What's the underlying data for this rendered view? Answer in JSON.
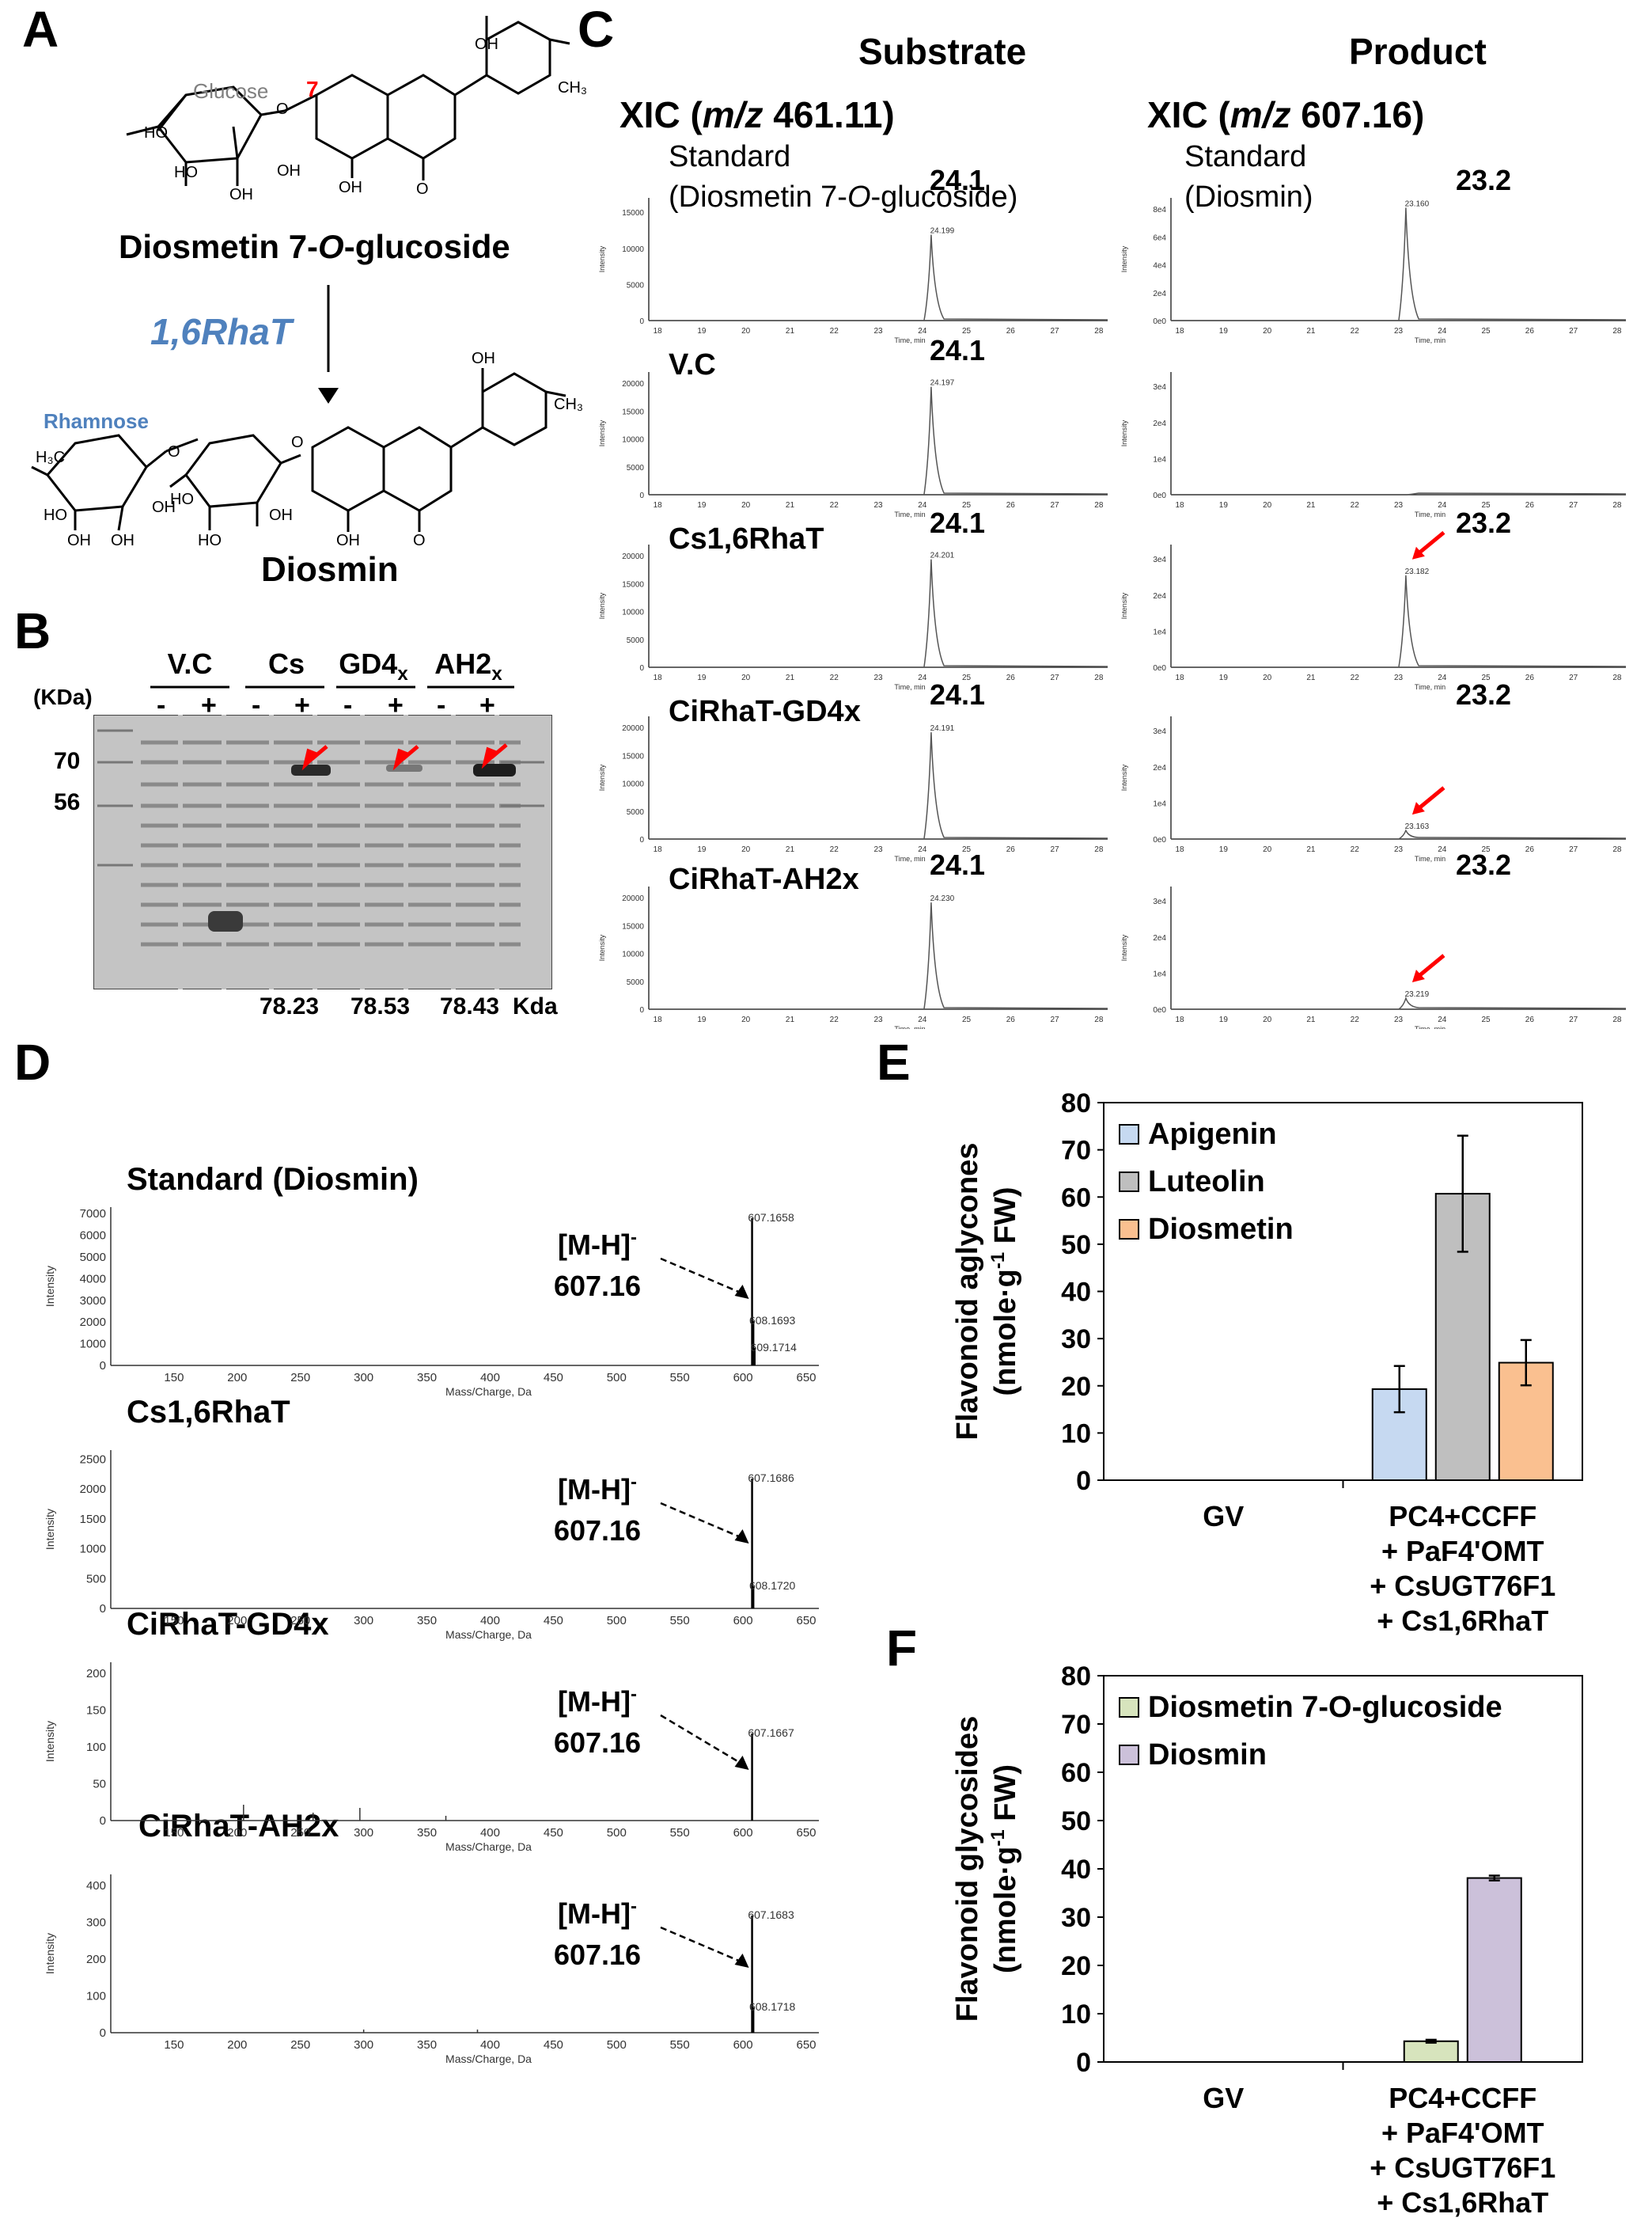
{
  "panels": {
    "A": "A",
    "B": "B",
    "C": "C",
    "D": "D",
    "E": "E",
    "F": "F"
  },
  "panelA": {
    "sugar_top": "Glucose",
    "position": "7",
    "substrate_name": "Diosmetin 7-",
    "substrate_o": "O",
    "substrate_suffix": "-glucoside",
    "enzyme": "1,6RhaT",
    "sugar_bottom": "Rhamnose",
    "product_name": "Diosmin",
    "atoms": {
      "ho": "HO",
      "oh": "OH",
      "o": "O",
      "h3c": "H₃C",
      "och3": "CH₃"
    }
  },
  "panelB": {
    "kda_label": "(KDa)",
    "markers": [
      "70",
      "56"
    ],
    "groups": [
      {
        "name": "V.C",
        "sub": ""
      },
      {
        "name": "Cs",
        "sub": ""
      },
      {
        "name": "GD4",
        "sub": "x"
      },
      {
        "name": "AH2",
        "sub": "x"
      }
    ],
    "minus": "-",
    "plus": "+",
    "sizes": [
      "78.23",
      "78.53",
      "78.43"
    ],
    "size_unit": "Kda"
  },
  "panelC": {
    "col_substrate": "Substrate",
    "col_product": "Product",
    "xic_prefix": "XIC (",
    "xic_mz": "m/z",
    "xic_sub_val": " 461.11)",
    "xic_prod_val": " 607.16)",
    "rows": [
      {
        "label": "Standard",
        "label2_pre": "(Diosmetin 7-",
        "label2_o": "O",
        "label2_post": "-glucoside)",
        "prod_label": "Standard",
        "prod_label2": "(Diosmin)",
        "sub_rt": "24.1",
        "sub_peak": "24.199",
        "prod_rt": "23.2",
        "prod_peak": "23.160"
      },
      {
        "label": "V.C",
        "sub_rt": "24.1",
        "sub_peak": "24.197",
        "prod_rt": "",
        "prod_peak": ""
      },
      {
        "label": "Cs1,6RhaT",
        "sub_rt": "24.1",
        "sub_peak": "24.201",
        "prod_rt": "23.2",
        "prod_peak": "23.182"
      },
      {
        "label": "CiRhaT-GD4x",
        "sub_rt": "24.1",
        "sub_peak": "24.191",
        "prod_rt": "23.2",
        "prod_peak": "23.163"
      },
      {
        "label": "CiRhaT-AH2x",
        "sub_rt": "24.1",
        "sub_peak": "24.230",
        "prod_rt": "23.2",
        "prod_peak": "23.219"
      }
    ],
    "x_ticks": [
      "18",
      "19",
      "20",
      "21",
      "22",
      "23",
      "24",
      "25",
      "26",
      "27",
      "28"
    ],
    "x_label": "Time, min",
    "y_label": "Intensity",
    "sub_yticks": [
      [
        "0",
        "5000",
        "10000",
        "15000"
      ],
      [
        "0",
        "5000",
        "10000",
        "15000",
        "20000"
      ],
      [
        "0",
        "5000",
        "10000",
        "15000",
        "20000"
      ],
      [
        "0",
        "5000",
        "10000",
        "15000",
        "20000"
      ],
      [
        "0",
        "5000",
        "10000",
        "15000",
        "20000"
      ]
    ],
    "prod_yticks": [
      [
        "0e0",
        "2e4",
        "4e4",
        "6e4",
        "8e4"
      ],
      [
        "0e0",
        "1e4",
        "2e4",
        "3e4"
      ],
      [
        "0e0",
        "1e4",
        "2e4",
        "3e4"
      ],
      [
        "0e0",
        "1e4",
        "2e4",
        "3e4"
      ],
      [
        "0e0",
        "1e4",
        "2e4",
        "3e4"
      ]
    ]
  },
  "panelD": {
    "spectra": [
      {
        "title": "Standard (Diosmin)",
        "yticks": [
          "0",
          "1000",
          "2000",
          "3000",
          "4000",
          "5000",
          "6000",
          "7000"
        ],
        "peaks": [
          "607.1658",
          "608.1693",
          "609.1714"
        ]
      },
      {
        "title": "Cs1,6RhaT",
        "yticks": [
          "0",
          "500",
          "1000",
          "1500",
          "2000",
          "2500"
        ],
        "peaks": [
          "607.1686",
          "608.1720"
        ]
      },
      {
        "title": "CiRhaT-GD4x",
        "yticks": [
          "0",
          "50",
          "100",
          "150",
          "200"
        ],
        "peaks": [
          "607.1667"
        ]
      },
      {
        "title": "CiRhaT-AH2x",
        "yticks": [
          "0",
          "100",
          "200",
          "300",
          "400"
        ],
        "peaks": [
          "607.1683",
          "608.1718"
        ]
      }
    ],
    "ion": "[M-H]",
    "ion_sup": "-",
    "ion_mass": "607.16",
    "x_ticks": [
      "150",
      "200",
      "250",
      "300",
      "350",
      "400",
      "450",
      "500",
      "550",
      "600",
      "650"
    ],
    "x_label": "Mass/Charge, Da",
    "y_label": "Intensity"
  },
  "chart_data": [
    {
      "type": "bar",
      "panel": "E",
      "categories": [
        "GV",
        "PC4+CCFF\n+ PaF4'OMT\n+ CsUGT76F1\n+ Cs1,6RhaT"
      ],
      "category_lines": [
        [
          "GV"
        ],
        [
          "PC4+CCFF",
          "+ PaF4'OMT",
          "+ CsUGT76F1",
          "+ Cs1,6RhaT"
        ]
      ],
      "series": [
        {
          "name": "Apigenin",
          "values": [
            0,
            19.3
          ],
          "errors": [
            0,
            4.9
          ],
          "color": "#c6d9f1"
        },
        {
          "name": "Luteolin",
          "values": [
            0,
            60.7
          ],
          "errors": [
            0,
            12.3
          ],
          "color": "#bfbfbf"
        },
        {
          "name": "Diosmetin",
          "values": [
            0,
            24.9
          ],
          "errors": [
            0,
            4.8
          ],
          "color": "#fac090"
        }
      ],
      "ylabel_line1": "Flavonoid aglycones",
      "ylabel_line2_pre": "(nmole·g",
      "ylabel_sup": "-1",
      "ylabel_line2_post": " FW)",
      "ylim": [
        0,
        80
      ],
      "yticks": [
        "0",
        "10",
        "20",
        "30",
        "40",
        "50",
        "60",
        "70",
        "80"
      ]
    },
    {
      "type": "bar",
      "panel": "F",
      "categories": [
        "GV",
        "PC4+CCFF\n+ PaF4'OMT\n+ CsUGT76F1\n+ Cs1,6RhaT"
      ],
      "category_lines": [
        [
          "GV"
        ],
        [
          "PC4+CCFF",
          "+ PaF4'OMT",
          "+ CsUGT76F1",
          "+ Cs1,6RhaT"
        ]
      ],
      "series": [
        {
          "name": "Diosmetin 7-O-glucoside",
          "values": [
            0,
            4.3
          ],
          "errors": [
            0,
            0.3
          ],
          "color": "#d7e4bd"
        },
        {
          "name": "Diosmin",
          "values": [
            0,
            38.1
          ],
          "errors": [
            0,
            0.5
          ],
          "color": "#ccc1da"
        }
      ],
      "ylabel_line1": "Flavonoid glycosides",
      "ylabel_line2_pre": "(nmole·g",
      "ylabel_sup": "-1",
      "ylabel_line2_post": " FW)",
      "ylim": [
        0,
        80
      ],
      "yticks": [
        "0",
        "10",
        "20",
        "30",
        "40",
        "50",
        "60",
        "70",
        "80"
      ]
    }
  ],
  "colors": {
    "enzyme": "#4f81bd",
    "glucose": "#808080",
    "position": "#ff0000",
    "arrow": "#ff0000",
    "trace": "#555555"
  }
}
